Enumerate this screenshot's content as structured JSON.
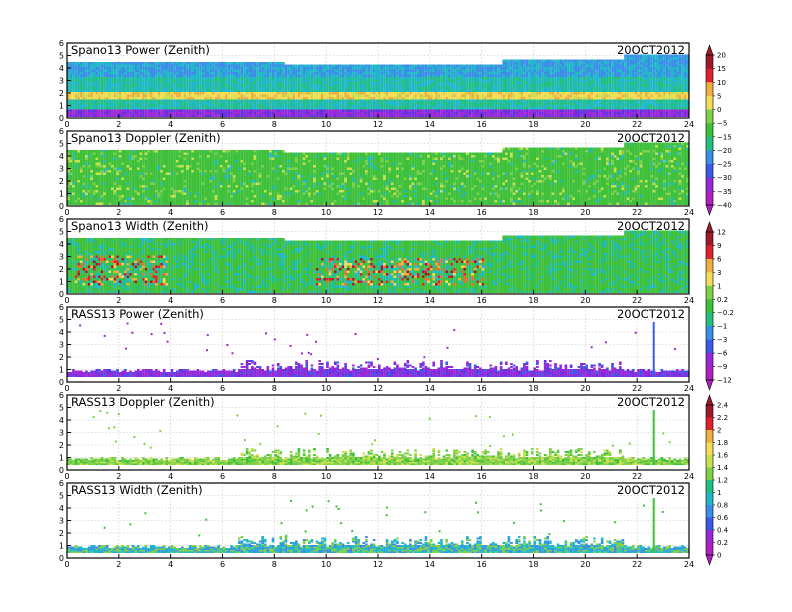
{
  "figure": {
    "panels": [
      {
        "title": "Spano13 Power (Zenith)",
        "date": "20OCT2012",
        "kind": "profiler",
        "variable": "power",
        "colorbar": 0
      },
      {
        "title": "Spano13 Doppler (Zenith)",
        "date": "20OCT2012",
        "kind": "profiler",
        "variable": "doppler",
        "colorbar": 0
      },
      {
        "title": "Spano13 Width (Zenith)",
        "date": "20OCT2012",
        "kind": "profiler",
        "variable": "width",
        "colorbar": 1
      },
      {
        "title": "RASS13 Power (Zenith)",
        "date": "20OCT2012",
        "kind": "rass",
        "variable": "power",
        "colorbar": 1
      },
      {
        "title": "RASS13 Doppler (Zenith)",
        "date": "20OCT2012",
        "kind": "rass",
        "variable": "doppler",
        "colorbar": 2
      },
      {
        "title": "RASS13 Width (Zenith)",
        "date": "20OCT2012",
        "kind": "rass",
        "variable": "width",
        "colorbar": 2
      }
    ],
    "colorbars": [
      {
        "labels": [
          "20",
          "15",
          "10",
          "5",
          "0",
          "−5",
          "−15",
          "−20",
          "−25",
          "−30",
          "−35",
          "−40"
        ]
      },
      {
        "labels": [
          "12",
          "9",
          "6",
          "3",
          "1",
          "0.2",
          "−0.2",
          "−1",
          "−3",
          "−6",
          "−9",
          "−12"
        ]
      },
      {
        "labels": [
          "2.4",
          "2.2",
          "2",
          "1.8",
          "1.6",
          "1.4",
          "1.2",
          "1",
          "0.8",
          "0.6",
          "0.4",
          "0.2",
          "0"
        ]
      }
    ],
    "palette": [
      "#9e1a2b",
      "#e0202a",
      "#f06a30",
      "#f0b040",
      "#f5dc55",
      "#c8e050",
      "#7ed048",
      "#3ec03a",
      "#22c080",
      "#20b8c8",
      "#3a8ee8",
      "#3a5ae8",
      "#6a2ee0",
      "#9a28d8",
      "#b020c0"
    ]
  },
  "chart_data": [
    {
      "type": "heatmap",
      "title": "Spano13 Power (Zenith)",
      "date": "20OCT2012",
      "x": {
        "range": [
          0,
          24
        ],
        "ticks": [
          0,
          2,
          4,
          6,
          8,
          10,
          12,
          14,
          16,
          18,
          20,
          22,
          24
        ]
      },
      "y": {
        "range": [
          0,
          6
        ],
        "ticks": [
          0,
          1,
          2,
          3,
          4,
          5,
          6
        ]
      },
      "colorbar_labels": [
        "20",
        "15",
        "10",
        "5",
        "0",
        "−5",
        "−15",
        "−20",
        "−25",
        "−30",
        "−35",
        "−40"
      ],
      "description_top_km": [
        [
          0,
          4.3
        ],
        [
          8.3,
          4.1
        ],
        [
          16.7,
          4.6
        ],
        [
          21.5,
          4.9
        ],
        [
          24,
          4.9
        ]
      ],
      "bands": [
        {
          "y": [
            1.3,
            2.0
          ],
          "level": "0 to 10"
        },
        {
          "y": [
            0.1,
            0.5
          ],
          "level": "-35 to -40"
        }
      ]
    },
    {
      "type": "heatmap",
      "title": "Spano13 Doppler (Zenith)",
      "date": "20OCT2012",
      "x": {
        "range": [
          0,
          24
        ],
        "ticks": [
          0,
          2,
          4,
          6,
          8,
          10,
          12,
          14,
          16,
          18,
          20,
          22,
          24
        ]
      },
      "y": {
        "range": [
          0,
          6
        ],
        "ticks": [
          0,
          1,
          2,
          3,
          4,
          5,
          6
        ]
      },
      "colorbar_labels": [
        "20",
        "15",
        "10",
        "5",
        "0",
        "−5",
        "−15",
        "−20",
        "−25",
        "−30",
        "−35",
        "−40"
      ],
      "description_top_km": [
        [
          0,
          4.3
        ],
        [
          8.3,
          4.1
        ],
        [
          16.7,
          4.6
        ],
        [
          21.5,
          4.9
        ],
        [
          24,
          4.9
        ]
      ]
    },
    {
      "type": "heatmap",
      "title": "Spano13 Width (Zenith)",
      "date": "20OCT2012",
      "x": {
        "range": [
          0,
          24
        ],
        "ticks": [
          0,
          2,
          4,
          6,
          8,
          10,
          12,
          14,
          16,
          18,
          20,
          22,
          24
        ]
      },
      "y": {
        "range": [
          0,
          6
        ],
        "ticks": [
          0,
          1,
          2,
          3,
          4,
          5,
          6
        ]
      },
      "colorbar_labels": [
        "12",
        "9",
        "6",
        "3",
        "1",
        "0.2",
        "−0.2",
        "−1",
        "−3",
        "−6",
        "−9",
        "−12"
      ],
      "description_top_km": [
        [
          0,
          4.3
        ],
        [
          8.3,
          4.1
        ],
        [
          16.7,
          4.6
        ],
        [
          21.5,
          4.9
        ],
        [
          24,
          4.9
        ]
      ]
    },
    {
      "type": "heatmap",
      "title": "RASS13 Power (Zenith)",
      "date": "20OCT2012",
      "x": {
        "range": [
          0,
          24
        ],
        "ticks": [
          0,
          2,
          4,
          6,
          8,
          10,
          12,
          14,
          16,
          18,
          20,
          22,
          24
        ]
      },
      "y": {
        "range": [
          0,
          6
        ],
        "ticks": [
          0,
          1,
          2,
          3,
          4,
          5,
          6
        ]
      },
      "colorbar_labels": [
        "12",
        "9",
        "6",
        "3",
        "1",
        "0.2",
        "−0.2",
        "−1",
        "−3",
        "−6",
        "−9",
        "−12"
      ],
      "spike_x_hours": 22.6
    },
    {
      "type": "heatmap",
      "title": "RASS13 Doppler (Zenith)",
      "date": "20OCT2012",
      "x": {
        "range": [
          0,
          24
        ],
        "ticks": [
          0,
          2,
          4,
          6,
          8,
          10,
          12,
          14,
          16,
          18,
          20,
          22,
          24
        ]
      },
      "y": {
        "range": [
          0,
          6
        ],
        "ticks": [
          0,
          1,
          2,
          3,
          4,
          5,
          6
        ]
      },
      "colorbar_labels": [
        "2.4",
        "2.2",
        "2",
        "1.8",
        "1.6",
        "1.4",
        "1.2",
        "1",
        "0.8",
        "0.6",
        "0.4",
        "0.2",
        "0"
      ],
      "spike_x_hours": 22.6
    },
    {
      "type": "heatmap",
      "title": "RASS13 Width (Zenith)",
      "date": "20OCT2012",
      "x": {
        "range": [
          0,
          24
        ],
        "ticks": [
          0,
          2,
          4,
          6,
          8,
          10,
          12,
          14,
          16,
          18,
          20,
          22,
          24
        ]
      },
      "y": {
        "range": [
          0,
          6
        ],
        "ticks": [
          0,
          1,
          2,
          3,
          4,
          5,
          6
        ]
      },
      "colorbar_labels": [
        "2.4",
        "2.2",
        "2",
        "1.8",
        "1.6",
        "1.4",
        "1.2",
        "1",
        "0.8",
        "0.6",
        "0.4",
        "0.2",
        "0"
      ],
      "spike_x_hours": 22.6
    }
  ]
}
